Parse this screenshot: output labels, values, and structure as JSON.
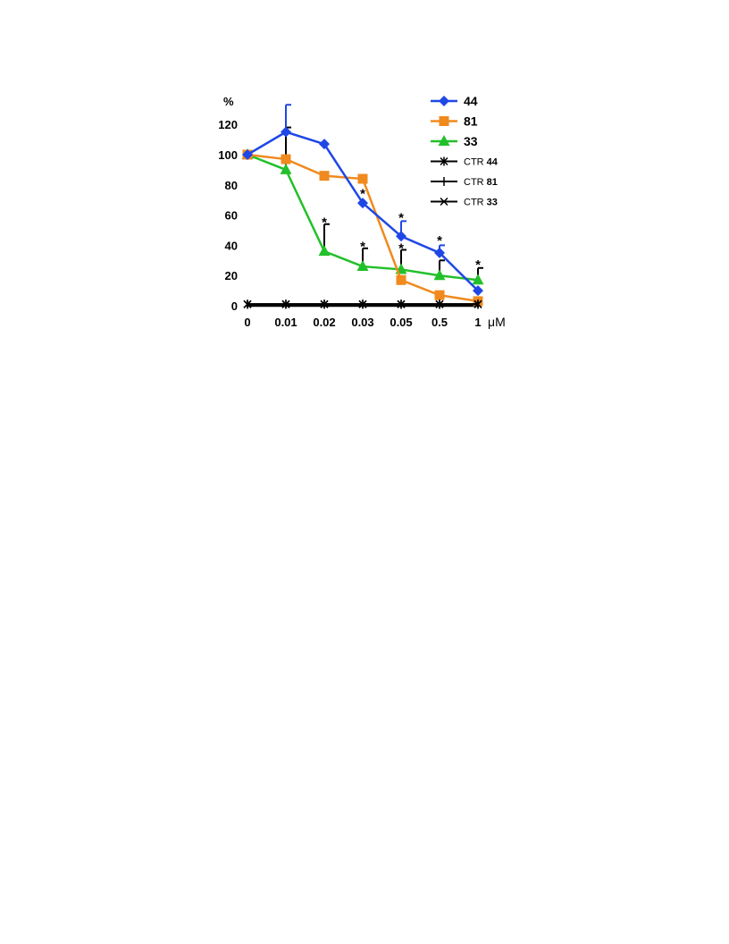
{
  "chart_data": {
    "type": "line",
    "title": "",
    "ylabel": "%",
    "xunit": "μM",
    "categories": [
      "0",
      "0.01",
      "0.02",
      "0.03",
      "0.05",
      "0.5",
      "1"
    ],
    "ylim": [
      0,
      140
    ],
    "yticks": [
      0,
      20,
      40,
      60,
      80,
      100,
      120
    ],
    "grid": false,
    "legend_position": "top-right",
    "series": [
      {
        "name": "44",
        "color": "#1f47e6",
        "marker": "diamond",
        "values": [
          100,
          115,
          107,
          68,
          46,
          35,
          10
        ],
        "err_plus": [
          0,
          18,
          0,
          0,
          10,
          5,
          0
        ]
      },
      {
        "name": "81",
        "color": "#f08a1e",
        "marker": "square",
        "values": [
          100,
          97,
          86,
          84,
          17,
          7,
          3
        ],
        "err_plus": [
          0,
          0,
          0,
          0,
          0,
          0,
          0
        ]
      },
      {
        "name": "33",
        "color": "#22c02a",
        "marker": "triangle",
        "values": [
          100,
          90,
          36,
          26,
          24,
          20,
          17
        ],
        "err_plus": [
          0,
          28,
          18,
          12,
          13,
          10,
          8
        ]
      },
      {
        "name": "CTR 44",
        "color": "#000000",
        "marker": "asterisk",
        "values": [
          1,
          1,
          1,
          1,
          1,
          1,
          1
        ]
      },
      {
        "name": "CTR 81",
        "color": "#000000",
        "marker": "plus",
        "values": [
          1,
          1,
          1,
          1,
          1,
          1,
          1
        ]
      },
      {
        "name": "CTR 33",
        "color": "#000000",
        "marker": "x",
        "values": [
          1,
          1,
          1,
          1,
          1,
          1,
          1
        ]
      }
    ],
    "annotations": [
      {
        "text": "*",
        "x": "0.02",
        "y": 57
      },
      {
        "text": "*",
        "x": "0.03",
        "y": 76
      },
      {
        "text": "*",
        "x": "0.03",
        "y": 41
      },
      {
        "text": "*",
        "x": "0.05",
        "y": 60
      },
      {
        "text": "*",
        "x": "0.05",
        "y": 40
      },
      {
        "text": "*",
        "x": "0.5",
        "y": 45
      },
      {
        "text": "*",
        "x": "1",
        "y": 29
      }
    ]
  }
}
